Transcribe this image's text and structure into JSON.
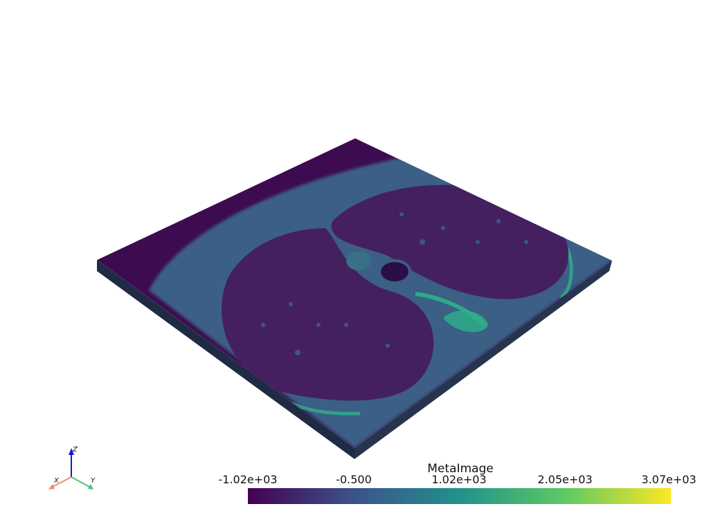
{
  "scene": {
    "colorbar": {
      "title": "MetaImage",
      "ticks": [
        "-1.02e+03",
        "-0.500",
        "1.02e+03",
        "2.05e+03",
        "3.07e+03"
      ],
      "colors": [
        "#440154",
        "#3b528b",
        "#21918c",
        "#5ec962",
        "#fde725"
      ]
    },
    "axes": {
      "x_label": "X",
      "y_label": "Y",
      "z_label": "Z",
      "x_color": "#f08a6a",
      "y_color": "#4cc07a",
      "z_color": "#1414e0"
    },
    "slab_colors": {
      "top_bg": "#3d0b4f",
      "tissue": "#3a5f85",
      "lung": "#45205f",
      "bone": "#2fb08a",
      "side": "#1f2b45"
    }
  }
}
